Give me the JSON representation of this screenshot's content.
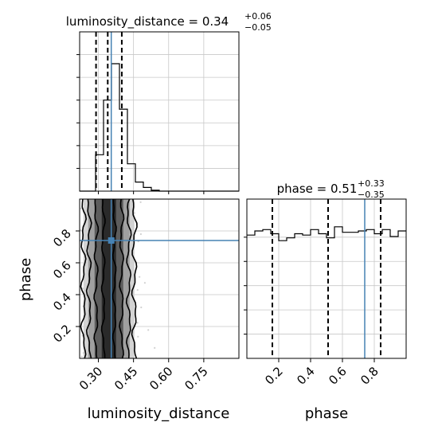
{
  "chart_data": {
    "type": "corner",
    "parameters": [
      "luminosity_distance",
      "phase"
    ],
    "injection": {
      "luminosity_distance": 0.355,
      "phase": 0.74
    },
    "marginals": [
      {
        "parameter": "luminosity_distance",
        "title": {
          "prefix": "luminosity_distance = ",
          "median": "0.34",
          "plus": "+0.06",
          "minus": "−0.05"
        },
        "quantiles": [
          0.29,
          0.34,
          0.4
        ],
        "truth": 0.355,
        "range": [
          0.22,
          0.9
        ],
        "bin_width": 0.034,
        "counts": [
          0,
          0,
          0.4,
          1.0,
          1.4,
          0.9,
          0.3,
          0.1,
          0.04,
          0.01,
          0,
          0,
          0,
          0,
          0,
          0,
          0,
          0,
          0,
          0
        ],
        "ymax": 1.75
      },
      {
        "parameter": "phase",
        "title": {
          "prefix": "phase = ",
          "median": "0.51",
          "plus": "+0.33",
          "minus": "−0.35"
        },
        "quantiles": [
          0.16,
          0.51,
          0.84
        ],
        "truth": 0.74,
        "range": [
          0.0,
          1.0
        ],
        "bin_width": 0.05,
        "counts": [
          0.89,
          0.92,
          0.93,
          0.9,
          0.85,
          0.87,
          0.9,
          0.89,
          0.93,
          0.9,
          0.87,
          0.95,
          0.91,
          0.91,
          0.92,
          0.93,
          0.9,
          0.93,
          0.88,
          0.92
        ],
        "ymax": 1.15
      }
    ],
    "joint": {
      "x_param": "luminosity_distance",
      "y_param": "phase",
      "xlim": [
        0.22,
        0.9
      ],
      "ylim": [
        0.0,
        1.0
      ],
      "x_center": 0.345,
      "x_sigma": 0.038
    },
    "x_ticks": {
      "luminosity_distance": [
        "0.30",
        "0.45",
        "0.60",
        "0.75"
      ],
      "phase": [
        "0.2",
        "0.4",
        "0.6",
        "0.8"
      ]
    },
    "y_ticks": {
      "phase": [
        "0.2",
        "0.4",
        "0.6",
        "0.8"
      ]
    },
    "xlabels": [
      "luminosity_distance",
      "phase"
    ],
    "ylabel": "phase",
    "grid": true,
    "colors": {
      "truth": "#4682b4",
      "hist": "#000000",
      "quantile": "#000000",
      "grid": "#c8c8c8"
    }
  }
}
